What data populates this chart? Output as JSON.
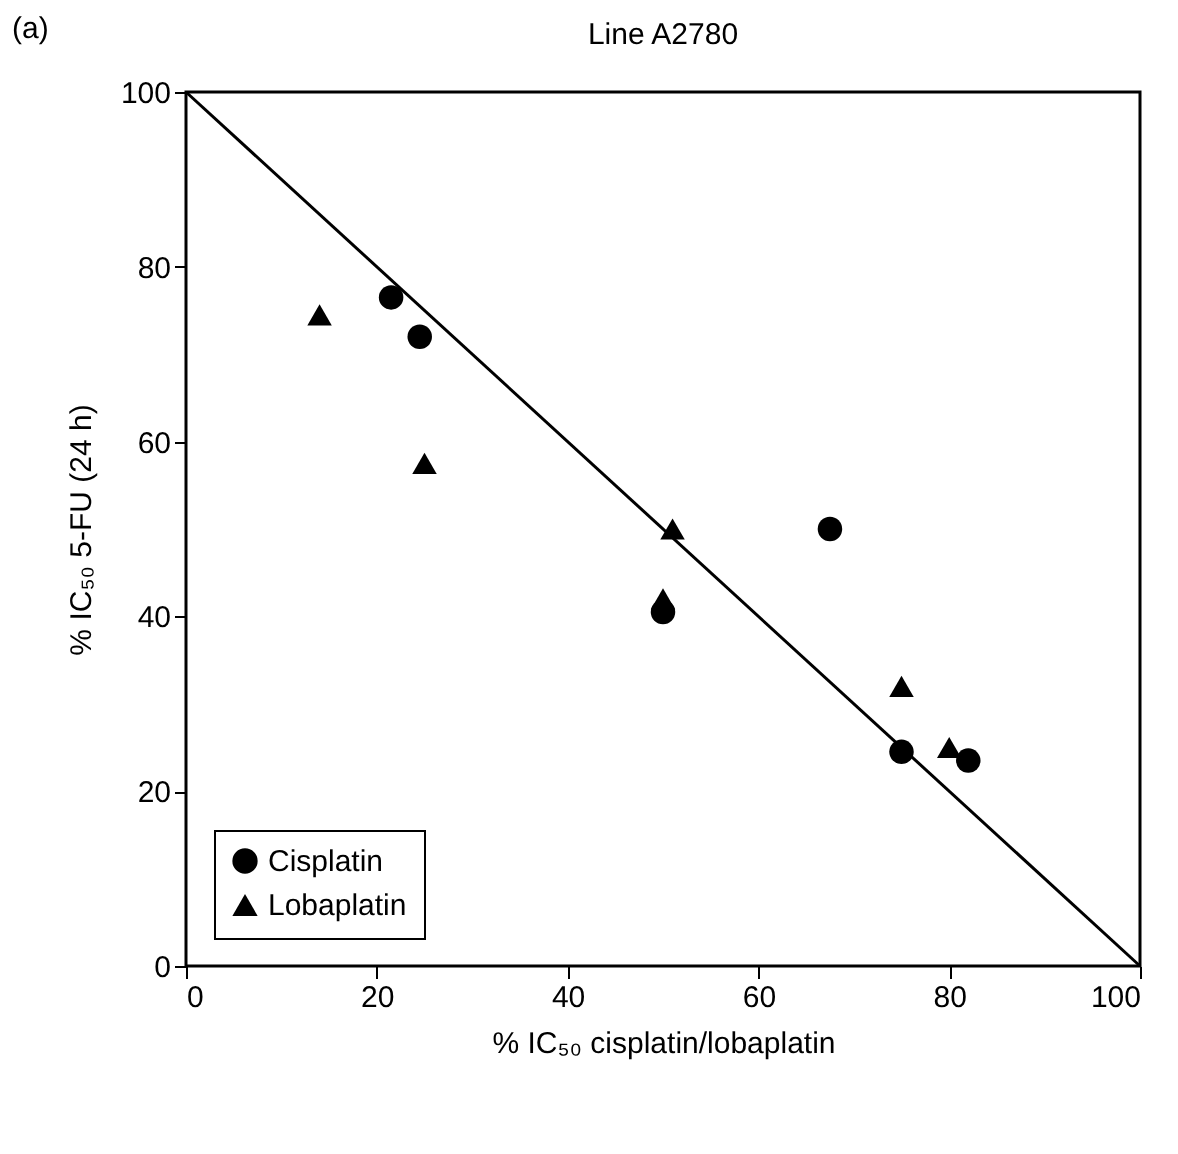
{
  "chart_data": {
    "type": "scatter",
    "title": "Line A2780",
    "xlabel": "% IC₅₀ cisplatin/lobaplatin",
    "ylabel": "% IC₅₀ 5-FU (24 h)",
    "annotations": [
      "(a)"
    ],
    "xlim": [
      0,
      100
    ],
    "ylim": [
      0,
      100
    ],
    "xticks": [
      0,
      20,
      40,
      60,
      80,
      100
    ],
    "yticks": [
      0,
      20,
      40,
      60,
      80,
      100
    ],
    "legend": "bottom left",
    "series": [
      {
        "name": "Cisplatin",
        "color": "#000000",
        "marker": "circle",
        "x": [
          21.5,
          24.5,
          50,
          67.5,
          75,
          82
        ],
        "values": [
          76.5,
          72,
          40.5,
          50,
          24.5,
          23.5
        ]
      },
      {
        "name": "Lobaplatin",
        "color": "#000000",
        "marker": "triangle",
        "x": [
          14,
          25,
          50,
          51,
          75,
          80
        ],
        "values": [
          74.5,
          57.5,
          42,
          50,
          32,
          25
        ]
      },
      {
        "type": "line",
        "color": "#000000",
        "line_style": "solid",
        "x": [
          0,
          100
        ],
        "values": [
          100,
          0
        ]
      }
    ]
  }
}
